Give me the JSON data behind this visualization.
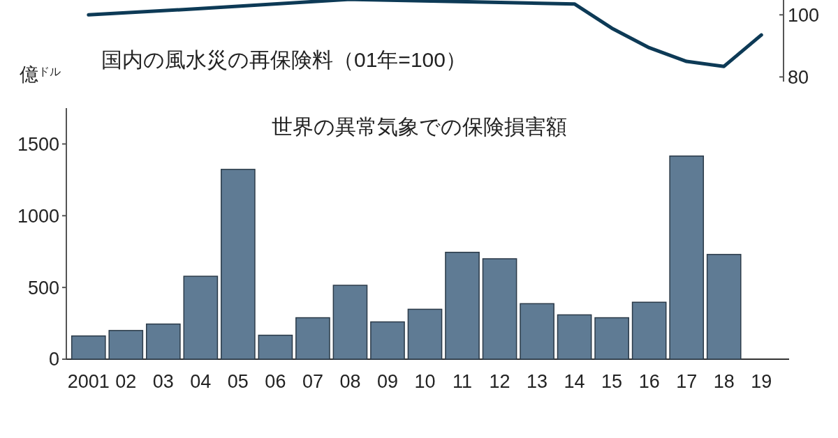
{
  "chart_data": [
    {
      "type": "line",
      "categories": [
        "2001",
        "02",
        "03",
        "04",
        "05",
        "06",
        "07",
        "08",
        "09",
        "10",
        "11",
        "12",
        "13",
        "14",
        "15",
        "16",
        "17",
        "18",
        "19"
      ],
      "tick_labels": "y",
      "ylim": [
        78.5,
        105
      ],
      "yticks": [
        80,
        100
      ],
      "series": [
        {
          "name": "国内の風水災の再保険料（01年=100）",
          "color": "#0d3a56",
          "values": [
            100,
            null,
            null,
            102,
            null,
            null,
            null,
            105,
            null,
            null,
            null,
            null,
            null,
            103.5,
            95.7,
            89.4,
            85,
            83.4,
            93.5
          ]
        }
      ]
    },
    {
      "type": "bar",
      "categories": [
        "2001",
        "02",
        "03",
        "04",
        "05",
        "06",
        "07",
        "08",
        "09",
        "10",
        "11",
        "12",
        "13",
        "14",
        "15",
        "16",
        "17",
        "18",
        "19"
      ],
      "ylabel": "億$^{ドル}$",
      "ylim": [
        0,
        1750
      ],
      "yticks": [
        0,
        500,
        1000,
        1500
      ],
      "series": [
        {
          "name": "世界の異常気象での保険損害額",
          "color": "#5f7b94",
          "values": [
            162,
            200,
            245,
            578,
            1323,
            167,
            289,
            515,
            260,
            348,
            745,
            700,
            387,
            309,
            289,
            397,
            1416,
            730,
            null
          ]
        }
      ]
    }
  ]
}
